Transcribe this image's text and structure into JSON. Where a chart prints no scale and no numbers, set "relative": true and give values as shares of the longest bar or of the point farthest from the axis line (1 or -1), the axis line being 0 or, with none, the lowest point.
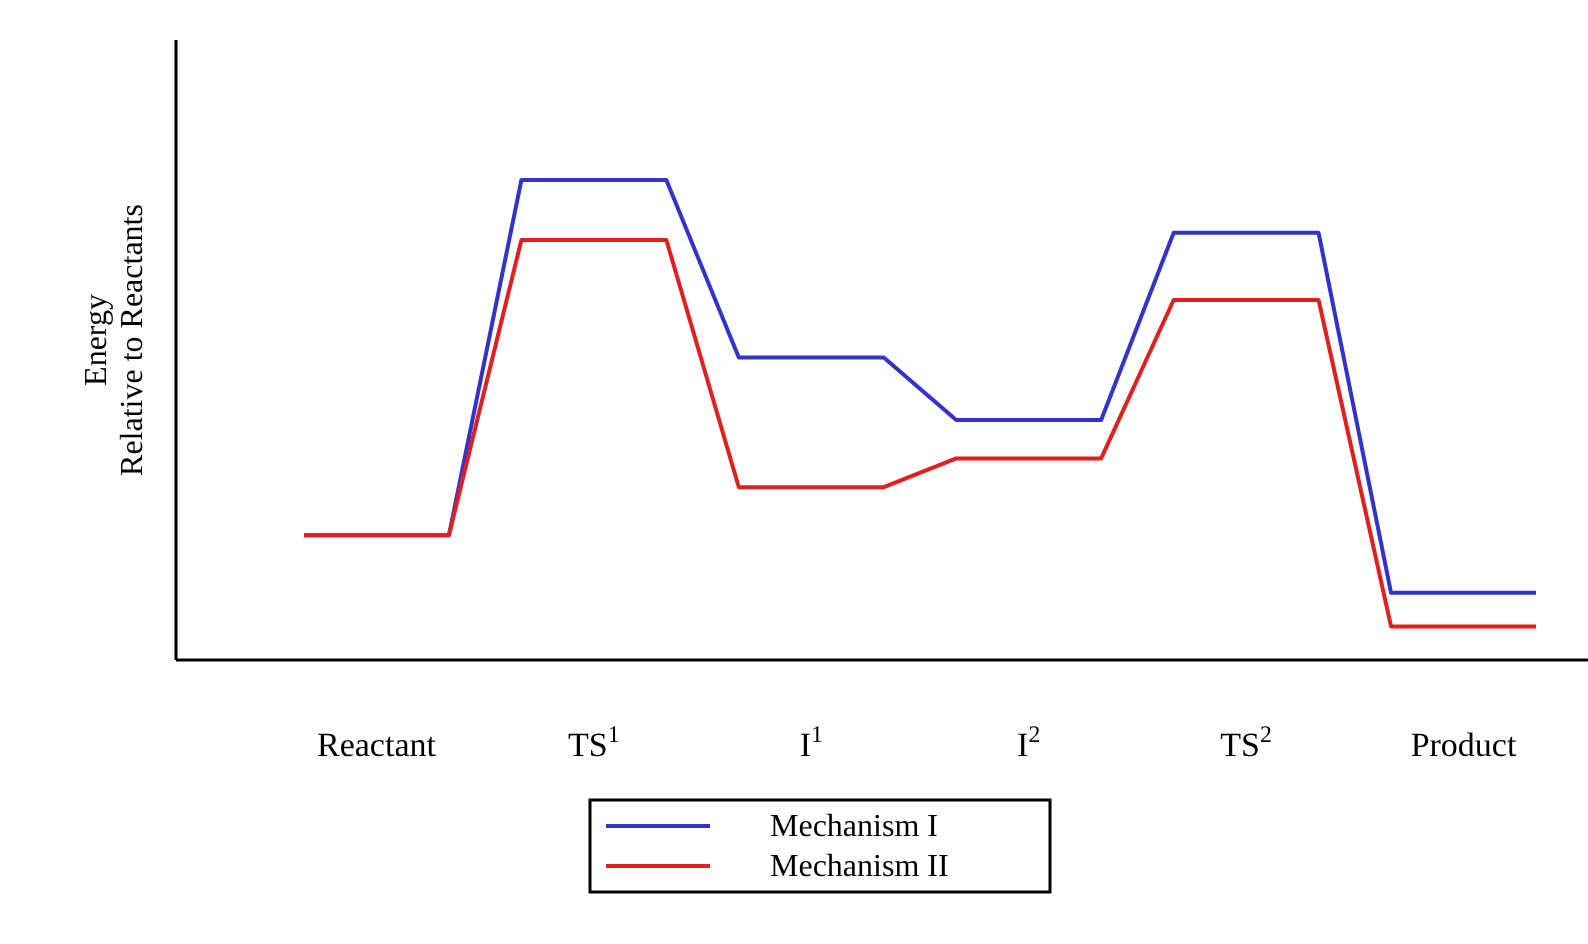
{
  "chart_data": {
    "type": "line",
    "relative": true,
    "ylabel": "Energy\nRelative to Reactants",
    "categories": [
      null,
      "Reactant",
      null,
      null,
      "TS$^{1}$",
      null,
      null,
      "I$^{1}$",
      null,
      null,
      "I$^{2}$",
      null,
      null,
      "TS$^{2}$",
      null,
      null,
      "Product",
      null
    ],
    "series": [
      {
        "name": "Mechanism I",
        "color": "#3333cc",
        "values": [
          0.26,
          0.26,
          0.26,
          1,
          1,
          1,
          0.63,
          0.63,
          0.63,
          0.5,
          0.5,
          0.5,
          0.89,
          0.89,
          0.89,
          0.14,
          0.14,
          0.14
        ]
      },
      {
        "name": "Mechanism II",
        "color": "#e02020",
        "values": [
          0.26,
          0.26,
          0.26,
          0.875,
          0.875,
          0.875,
          0.36,
          0.36,
          0.36,
          0.42,
          0.42,
          0.42,
          0.75,
          0.75,
          0.75,
          0.07,
          0.07,
          0.07
        ]
      }
    ],
    "legend": "bottom",
    "grid": false
  }
}
